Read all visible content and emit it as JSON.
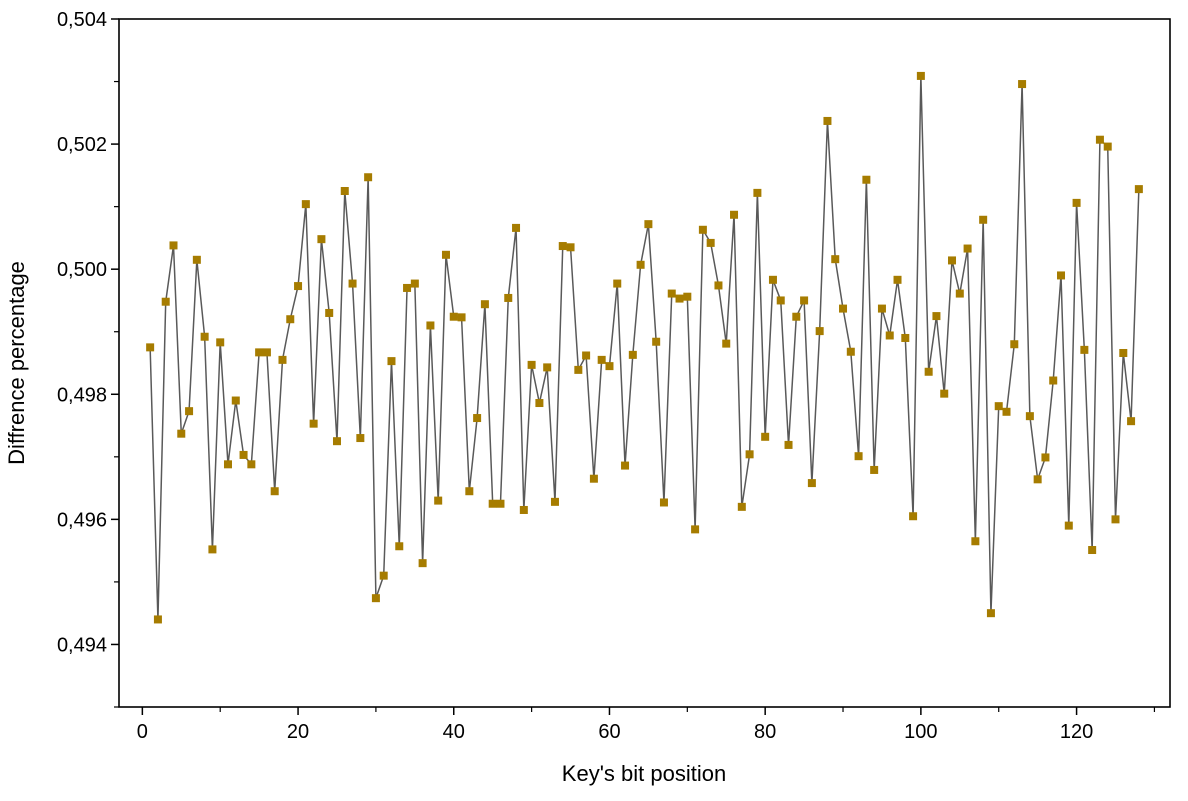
{
  "chart_data": {
    "type": "line",
    "title": "",
    "xlabel": "Key's bit position",
    "ylabel": "Diffrence percentage",
    "xlim": [
      -3,
      132
    ],
    "ylim": [
      0.493,
      0.504
    ],
    "x_ticks": [
      0,
      20,
      40,
      60,
      80,
      100,
      120
    ],
    "y_ticks": [
      0.494,
      0.496,
      0.498,
      0.5,
      0.502,
      0.504
    ],
    "y_tick_labels": [
      "0,494",
      "0,496",
      "0,498",
      "0,500",
      "0,502",
      "0,504"
    ],
    "grid": false,
    "legend": "none",
    "line_color": "#595959",
    "marker_color": "#a67c00",
    "marker_shape": "square",
    "x": [
      1,
      2,
      3,
      4,
      5,
      6,
      7,
      8,
      9,
      10,
      11,
      12,
      13,
      14,
      15,
      16,
      17,
      18,
      19,
      20,
      21,
      22,
      23,
      24,
      25,
      26,
      27,
      28,
      29,
      30,
      31,
      32,
      33,
      34,
      35,
      36,
      37,
      38,
      39,
      40,
      41,
      42,
      43,
      44,
      45,
      46,
      47,
      48,
      49,
      50,
      51,
      52,
      53,
      54,
      55,
      56,
      57,
      58,
      59,
      60,
      61,
      62,
      63,
      64,
      65,
      66,
      67,
      68,
      69,
      70,
      71,
      72,
      73,
      74,
      75,
      76,
      77,
      78,
      79,
      80,
      81,
      82,
      83,
      84,
      85,
      86,
      87,
      88,
      89,
      90,
      91,
      92,
      93,
      94,
      95,
      96,
      97,
      98,
      99,
      100,
      101,
      102,
      103,
      104,
      105,
      106,
      107,
      108,
      109,
      110,
      111,
      112,
      113,
      114,
      115,
      116,
      117,
      118,
      119,
      120,
      121,
      122,
      123,
      124,
      125,
      126,
      127,
      128
    ],
    "series": [
      {
        "values": [
          0.49875,
          0.4944,
          0.49948,
          0.50038,
          0.49737,
          0.49773,
          0.50015,
          0.49892,
          0.49552,
          0.49883,
          0.49688,
          0.4979,
          0.49703,
          0.49688,
          0.49867,
          0.49867,
          0.49645,
          0.49855,
          0.4992,
          0.49973,
          0.50104,
          0.49753,
          0.50048,
          0.4993,
          0.49725,
          0.50125,
          0.49977,
          0.4973,
          0.50147,
          0.49474,
          0.4951,
          0.49853,
          0.49557,
          0.4997,
          0.49977,
          0.4953,
          0.4991,
          0.4963,
          0.50023,
          0.49924,
          0.49923,
          0.49645,
          0.49762,
          0.49944,
          0.49625,
          0.49625,
          0.49954,
          0.50066,
          0.49615,
          0.49847,
          0.49786,
          0.49843,
          0.49628,
          0.50037,
          0.50035,
          0.49839,
          0.49862,
          0.49665,
          0.49855,
          0.49845,
          0.49977,
          0.49686,
          0.49863,
          0.50007,
          0.50072,
          0.49884,
          0.49627,
          0.49961,
          0.49953,
          0.49956,
          0.49584,
          0.50063,
          0.50042,
          0.49974,
          0.49881,
          0.50087,
          0.4962,
          0.49704,
          0.50122,
          0.49732,
          0.49983,
          0.4995,
          0.49719,
          0.49924,
          0.4995,
          0.49658,
          0.49901,
          0.50237,
          0.50016,
          0.49937,
          0.49868,
          0.49701,
          0.50143,
          0.49679,
          0.49937,
          0.49894,
          0.49983,
          0.4989,
          0.49605,
          0.50309,
          0.49836,
          0.49925,
          0.49801,
          0.50014,
          0.49961,
          0.50033,
          0.49565,
          0.50079,
          0.4945,
          0.49781,
          0.49772,
          0.4988,
          0.50296,
          0.49765,
          0.49664,
          0.49699,
          0.49822,
          0.4999,
          0.4959,
          0.50106,
          0.49871,
          0.49551,
          0.50207,
          0.50196,
          0.496,
          0.49866,
          0.49757,
          0.50128
        ]
      }
    ]
  }
}
